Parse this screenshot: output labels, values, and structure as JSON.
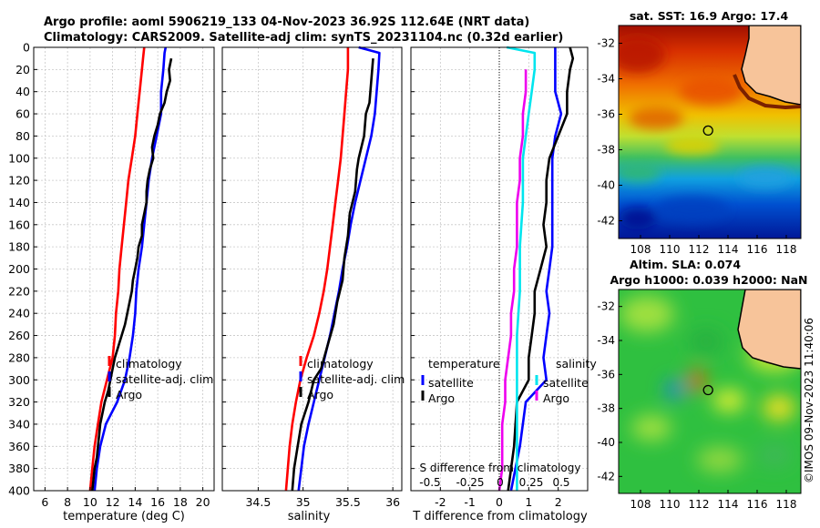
{
  "header": {
    "line1": "Argo profile: aoml 5906219_133 04-Nov-2023 36.92S 112.64E (NRT data)",
    "line2": "Climatology: CARS2009. Satellite-adj clim: synTS_20231104.nc (0.32d earlier)"
  },
  "watermark": "©IMOS 09-Nov-2023 11:40:06",
  "colors": {
    "climatology": "#ff0000",
    "satellite": "#0000ff",
    "argo": "#000000",
    "salinity_satellite": "#00e5ee",
    "salinity_argo": "#ee00ee",
    "land": "#f7c49a",
    "grid": "#c8c8c8"
  },
  "chart_data": [
    {
      "type": "line",
      "id": "temperature",
      "xlabel": "temperature (deg C)",
      "ylabel": "",
      "xlim": [
        5,
        21
      ],
      "ylim": [
        400,
        0
      ],
      "xticks": [
        6,
        8,
        10,
        12,
        14,
        16,
        18,
        20
      ],
      "yticks": [
        0,
        20,
        40,
        60,
        80,
        100,
        120,
        140,
        160,
        180,
        200,
        220,
        240,
        260,
        280,
        300,
        320,
        340,
        360,
        380,
        400
      ],
      "grid": true,
      "legend": {
        "position": "bottom-right",
        "entries": [
          "climatology",
          "satellite-adj. clim",
          "Argo"
        ]
      },
      "series": [
        {
          "name": "climatology",
          "color": "#ff0000",
          "points": [
            [
              14.8,
              0
            ],
            [
              14.7,
              10
            ],
            [
              14.6,
              20
            ],
            [
              14.4,
              40
            ],
            [
              14.2,
              60
            ],
            [
              14.0,
              80
            ],
            [
              13.7,
              100
            ],
            [
              13.4,
              120
            ],
            [
              13.2,
              140
            ],
            [
              13.0,
              160
            ],
            [
              12.8,
              180
            ],
            [
              12.6,
              200
            ],
            [
              12.5,
              220
            ],
            [
              12.3,
              240
            ],
            [
              12.2,
              260
            ],
            [
              12.0,
              280
            ],
            [
              11.5,
              300
            ],
            [
              11.0,
              320
            ],
            [
              10.7,
              340
            ],
            [
              10.4,
              360
            ],
            [
              10.2,
              380
            ],
            [
              10.0,
              400
            ]
          ]
        },
        {
          "name": "satellite-adj. clim",
          "color": "#0000ff",
          "points": [
            [
              16.7,
              0
            ],
            [
              16.6,
              5
            ],
            [
              16.5,
              20
            ],
            [
              16.3,
              40
            ],
            [
              16.3,
              60
            ],
            [
              15.9,
              80
            ],
            [
              15.5,
              100
            ],
            [
              15.2,
              120
            ],
            [
              15.0,
              140
            ],
            [
              14.8,
              160
            ],
            [
              14.6,
              180
            ],
            [
              14.3,
              200
            ],
            [
              14.1,
              220
            ],
            [
              14.0,
              240
            ],
            [
              13.8,
              260
            ],
            [
              13.5,
              280
            ],
            [
              13.1,
              300
            ],
            [
              12.4,
              320
            ],
            [
              11.4,
              340
            ],
            [
              10.9,
              360
            ],
            [
              10.6,
              380
            ],
            [
              10.4,
              400
            ]
          ]
        },
        {
          "name": "Argo",
          "color": "#000000",
          "points": [
            [
              17.2,
              10
            ],
            [
              17.0,
              20
            ],
            [
              17.1,
              30
            ],
            [
              16.8,
              40
            ],
            [
              16.6,
              50
            ],
            [
              16.2,
              60
            ],
            [
              16.0,
              70
            ],
            [
              15.7,
              80
            ],
            [
              15.5,
              90
            ],
            [
              15.6,
              100
            ],
            [
              15.3,
              110
            ],
            [
              15.1,
              120
            ],
            [
              15.0,
              130
            ],
            [
              15.0,
              140
            ],
            [
              14.8,
              150
            ],
            [
              14.6,
              160
            ],
            [
              14.6,
              170
            ],
            [
              14.3,
              180
            ],
            [
              14.2,
              190
            ],
            [
              14.0,
              200
            ],
            [
              13.8,
              210
            ],
            [
              13.7,
              220
            ],
            [
              13.5,
              230
            ],
            [
              13.3,
              240
            ],
            [
              13.1,
              250
            ],
            [
              12.8,
              260
            ],
            [
              12.5,
              270
            ],
            [
              12.2,
              280
            ],
            [
              12.0,
              290
            ],
            [
              11.8,
              300
            ],
            [
              11.6,
              310
            ],
            [
              11.3,
              320
            ],
            [
              11.1,
              330
            ],
            [
              10.9,
              340
            ],
            [
              10.8,
              350
            ],
            [
              10.7,
              360
            ],
            [
              10.6,
              370
            ],
            [
              10.4,
              380
            ],
            [
              10.3,
              390
            ],
            [
              10.2,
              400
            ]
          ]
        }
      ]
    },
    {
      "type": "line",
      "id": "salinity",
      "xlabel": "salinity",
      "ylabel": "",
      "xlim": [
        34.1,
        36.1
      ],
      "ylim": [
        400,
        0
      ],
      "xticks": [
        34.5,
        35,
        35.5,
        36
      ],
      "xticklabels": [
        "34.5",
        "35",
        "35.5",
        "36"
      ],
      "grid": true,
      "legend": {
        "position": "bottom-right",
        "entries": [
          "climatology",
          "satellite-adj. clim",
          "Argo"
        ]
      },
      "series": [
        {
          "name": "climatology",
          "color": "#ff0000",
          "points": [
            [
              35.5,
              0
            ],
            [
              35.5,
              20
            ],
            [
              35.48,
              40
            ],
            [
              35.46,
              60
            ],
            [
              35.44,
              80
            ],
            [
              35.42,
              100
            ],
            [
              35.39,
              120
            ],
            [
              35.36,
              140
            ],
            [
              35.33,
              160
            ],
            [
              35.3,
              180
            ],
            [
              35.27,
              200
            ],
            [
              35.23,
              220
            ],
            [
              35.18,
              240
            ],
            [
              35.12,
              260
            ],
            [
              35.04,
              280
            ],
            [
              34.97,
              300
            ],
            [
              34.92,
              320
            ],
            [
              34.88,
              340
            ],
            [
              34.85,
              360
            ],
            [
              34.83,
              380
            ],
            [
              34.81,
              400
            ]
          ]
        },
        {
          "name": "satellite-adj. clim",
          "color": "#0000ff",
          "points": [
            [
              35.62,
              0
            ],
            [
              35.85,
              5
            ],
            [
              35.84,
              20
            ],
            [
              35.82,
              40
            ],
            [
              35.8,
              60
            ],
            [
              35.76,
              80
            ],
            [
              35.7,
              100
            ],
            [
              35.64,
              120
            ],
            [
              35.58,
              140
            ],
            [
              35.53,
              160
            ],
            [
              35.49,
              180
            ],
            [
              35.44,
              200
            ],
            [
              35.4,
              220
            ],
            [
              35.35,
              240
            ],
            [
              35.3,
              260
            ],
            [
              35.24,
              280
            ],
            [
              35.18,
              300
            ],
            [
              35.12,
              320
            ],
            [
              35.06,
              340
            ],
            [
              35.01,
              360
            ],
            [
              34.98,
              380
            ],
            [
              34.95,
              400
            ]
          ]
        },
        {
          "name": "Argo",
          "color": "#000000",
          "points": [
            [
              35.78,
              10
            ],
            [
              35.76,
              30
            ],
            [
              35.74,
              50
            ],
            [
              35.7,
              60
            ],
            [
              35.68,
              80
            ],
            [
              35.62,
              100
            ],
            [
              35.6,
              110
            ],
            [
              35.58,
              130
            ],
            [
              35.52,
              150
            ],
            [
              35.5,
              170
            ],
            [
              35.46,
              190
            ],
            [
              35.44,
              210
            ],
            [
              35.38,
              230
            ],
            [
              35.34,
              250
            ],
            [
              35.27,
              270
            ],
            [
              35.2,
              290
            ],
            [
              35.12,
              300
            ],
            [
              35.06,
              320
            ],
            [
              34.98,
              340
            ],
            [
              34.94,
              360
            ],
            [
              34.9,
              380
            ],
            [
              34.88,
              400
            ]
          ]
        }
      ]
    },
    {
      "type": "line",
      "id": "difference",
      "xlabel": "T difference from climatology",
      "top_xlabel": "S difference from climatology",
      "ylabel": "",
      "xlim": [
        -3,
        3
      ],
      "ylim": [
        400,
        0
      ],
      "xticks": [
        -2,
        -1,
        0,
        1,
        2
      ],
      "top_xticks": [
        "-0.5",
        "-0.25",
        "0",
        "0.25",
        "0.5"
      ],
      "grid": true,
      "legend_temperature": {
        "title": "temperature",
        "entries": [
          "satellite",
          "Argo"
        ]
      },
      "legend_salinity": {
        "title": "salinity",
        "entries": [
          "satellite",
          "Argo"
        ]
      },
      "series": [
        {
          "name": "temperature satellite",
          "color": "#0000ff",
          "points": [
            [
              1.9,
              0
            ],
            [
              1.9,
              20
            ],
            [
              1.9,
              40
            ],
            [
              2.1,
              60
            ],
            [
              1.9,
              80
            ],
            [
              1.8,
              100
            ],
            [
              1.8,
              120
            ],
            [
              1.8,
              140
            ],
            [
              1.8,
              160
            ],
            [
              1.8,
              180
            ],
            [
              1.7,
              200
            ],
            [
              1.6,
              220
            ],
            [
              1.7,
              240
            ],
            [
              1.6,
              260
            ],
            [
              1.5,
              280
            ],
            [
              1.6,
              300
            ],
            [
              0.9,
              320
            ],
            [
              0.7,
              360
            ],
            [
              0.4,
              400
            ]
          ]
        },
        {
          "name": "temperature Argo",
          "color": "#000000",
          "points": [
            [
              2.4,
              0
            ],
            [
              2.5,
              10
            ],
            [
              2.4,
              20
            ],
            [
              2.3,
              40
            ],
            [
              2.3,
              60
            ],
            [
              2.0,
              80
            ],
            [
              1.7,
              100
            ],
            [
              1.6,
              120
            ],
            [
              1.6,
              140
            ],
            [
              1.5,
              160
            ],
            [
              1.6,
              180
            ],
            [
              1.4,
              200
            ],
            [
              1.2,
              220
            ],
            [
              1.2,
              240
            ],
            [
              1.1,
              260
            ],
            [
              1.0,
              280
            ],
            [
              1.0,
              300
            ],
            [
              0.6,
              320
            ],
            [
              0.5,
              360
            ],
            [
              0.3,
              400
            ]
          ]
        },
        {
          "name": "salinity satellite",
          "color": "#00e5ee",
          "points": [
            [
              0.25,
              0
            ],
            [
              1.2,
              5
            ],
            [
              1.2,
              20
            ],
            [
              1.1,
              40
            ],
            [
              1.0,
              60
            ],
            [
              0.9,
              80
            ],
            [
              0.8,
              100
            ],
            [
              0.8,
              140
            ],
            [
              0.7,
              180
            ],
            [
              0.7,
              220
            ],
            [
              0.6,
              260
            ],
            [
              0.6,
              300
            ],
            [
              0.6,
              340
            ],
            [
              0.6,
              380
            ],
            [
              0.6,
              400
            ]
          ]
        },
        {
          "name": "salinity Argo",
          "color": "#ee00ee",
          "points": [
            [
              0.9,
              20
            ],
            [
              0.9,
              40
            ],
            [
              0.8,
              60
            ],
            [
              0.8,
              80
            ],
            [
              0.7,
              100
            ],
            [
              0.7,
              120
            ],
            [
              0.6,
              140
            ],
            [
              0.6,
              160
            ],
            [
              0.6,
              180
            ],
            [
              0.5,
              200
            ],
            [
              0.5,
              220
            ],
            [
              0.4,
              240
            ],
            [
              0.4,
              260
            ],
            [
              0.3,
              280
            ],
            [
              0.2,
              300
            ],
            [
              0.2,
              320
            ],
            [
              0.1,
              340
            ],
            [
              0.1,
              360
            ],
            [
              0.1,
              380
            ],
            [
              0.0,
              400
            ]
          ]
        }
      ]
    },
    {
      "type": "heatmap",
      "id": "sst_map",
      "title": "sat. SST: 16.9 Argo: 17.4",
      "xlim": [
        106.5,
        119
      ],
      "ylim": [
        -43,
        -31
      ],
      "xticks": [
        108,
        110,
        112,
        114,
        116,
        118
      ],
      "yticks": [
        -32,
        -34,
        -36,
        -38,
        -40,
        -42
      ],
      "argo_position": [
        112.64,
        -36.92
      ]
    },
    {
      "type": "heatmap",
      "id": "sla_map",
      "title": "Altim. SLA: 0.074",
      "subtitle": "Argo h1000: 0.039 h2000: NaN",
      "xlim": [
        106.5,
        119
      ],
      "ylim": [
        -43,
        -31
      ],
      "xticks": [
        108,
        110,
        112,
        114,
        116,
        118
      ],
      "yticks": [
        -32,
        -34,
        -36,
        -38,
        -40,
        -42
      ],
      "argo_position": [
        112.64,
        -36.92
      ]
    }
  ]
}
